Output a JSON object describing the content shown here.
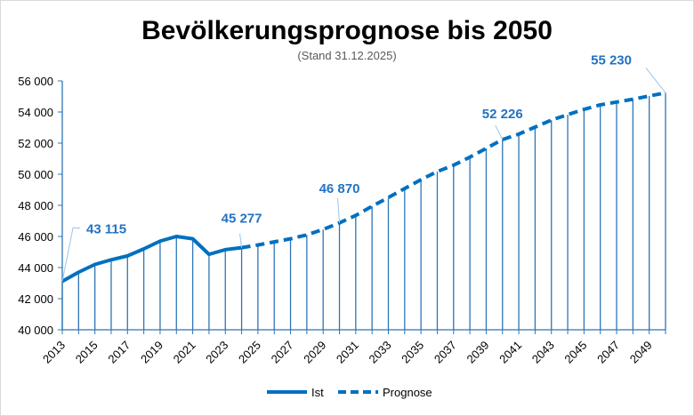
{
  "chart_data": {
    "type": "line",
    "title": "Bevölkerungsprognose bis 2050",
    "subtitle": "(Stand 31.12.2025)",
    "xlabel": "",
    "ylabel": "",
    "ylim": [
      40000,
      56000
    ],
    "yticks": [
      40000,
      42000,
      44000,
      46000,
      48000,
      50000,
      52000,
      54000,
      56000
    ],
    "ytick_labels": [
      "40 000",
      "42 000",
      "44 000",
      "46 000",
      "48 000",
      "50 000",
      "52 000",
      "54 000",
      "56 000"
    ],
    "xlim": [
      2013,
      2050
    ],
    "xtick_labels": [
      "2013",
      "2015",
      "2017",
      "2019",
      "2021",
      "2023",
      "2025",
      "2027",
      "2029",
      "2031",
      "2033",
      "2035",
      "2037",
      "2039",
      "2041",
      "2043",
      "2045",
      "2047",
      "2049"
    ],
    "grid": false,
    "drop_lines": true,
    "legend_position": "bottom",
    "colors": {
      "line": "#0070c0",
      "drop": "#2e75b6",
      "label": "#2272c3"
    },
    "series": [
      {
        "name": "Ist",
        "style": "solid",
        "x": [
          2013,
          2014,
          2015,
          2016,
          2017,
          2018,
          2019,
          2020,
          2021,
          2022,
          2023,
          2024
        ],
        "y": [
          43115,
          43700,
          44200,
          44500,
          44750,
          45200,
          45700,
          46000,
          45850,
          44850,
          45150,
          45277
        ]
      },
      {
        "name": "Prognose",
        "style": "dashed",
        "x": [
          2024,
          2025,
          2026,
          2027,
          2028,
          2029,
          2030,
          2031,
          2032,
          2033,
          2034,
          2035,
          2036,
          2037,
          2038,
          2039,
          2040,
          2041,
          2042,
          2043,
          2044,
          2045,
          2046,
          2047,
          2048,
          2049,
          2050
        ],
        "y": [
          45277,
          45450,
          45650,
          45850,
          46100,
          46450,
          46870,
          47350,
          47940,
          48500,
          49080,
          49650,
          50170,
          50580,
          51100,
          51660,
          52226,
          52580,
          53030,
          53480,
          53830,
          54170,
          54460,
          54640,
          54820,
          55030,
          55230
        ]
      }
    ],
    "data_labels": [
      {
        "x": 2013,
        "y": 43115,
        "text": "43 115"
      },
      {
        "x": 2024,
        "y": 45277,
        "text": "45 277"
      },
      {
        "x": 2030,
        "y": 46870,
        "text": "46 870"
      },
      {
        "x": 2040,
        "y": 52226,
        "text": "52 226"
      },
      {
        "x": 2050,
        "y": 55230,
        "text": "55 230"
      }
    ]
  }
}
